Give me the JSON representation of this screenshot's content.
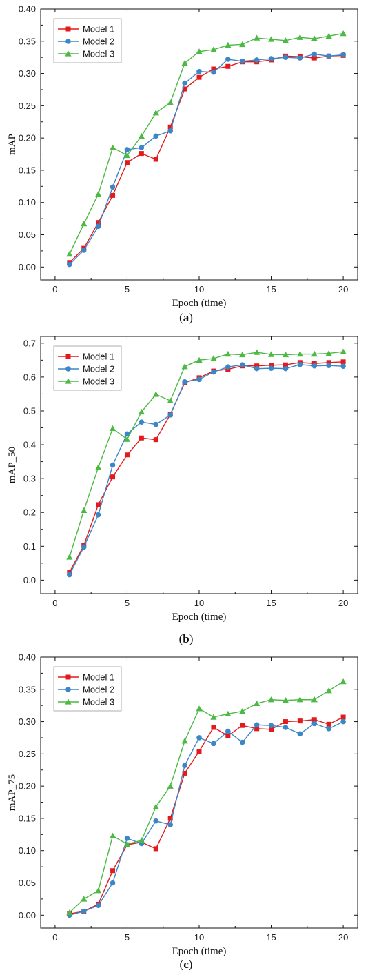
{
  "figure": {
    "series_colors": {
      "Model 1": "#e31a1c",
      "Model 2": "#3b86c6",
      "Model 3": "#4cb944"
    },
    "marker_shapes": {
      "Model 1": "square",
      "Model 2": "circle",
      "Model 3": "triangle"
    }
  },
  "chart_data": [
    {
      "type": "line",
      "caption": "(a)",
      "caption_letter": "a",
      "xlabel": "Epoch (time)",
      "ylabel": "mAP",
      "xlim": [
        -1,
        21
      ],
      "ylim": [
        -0.02,
        0.4
      ],
      "xticks": [
        0,
        5,
        10,
        15,
        20
      ],
      "xtick_labels": [
        "0",
        "5",
        "10",
        "15",
        "20"
      ],
      "yticks": [
        0.0,
        0.05,
        0.1,
        0.15,
        0.2,
        0.25,
        0.3,
        0.35,
        0.4
      ],
      "ytick_labels": [
        "0.00",
        "0.05",
        "0.10",
        "0.15",
        "0.20",
        "0.25",
        "0.30",
        "0.35",
        "0.40"
      ],
      "legend_position": "top-left",
      "grid": false,
      "x": [
        1,
        2,
        3,
        4,
        5,
        6,
        7,
        8,
        9,
        10,
        11,
        12,
        13,
        14,
        15,
        16,
        17,
        18,
        19,
        20
      ],
      "series": [
        {
          "name": "Model 1",
          "values": [
            0.007,
            0.029,
            0.069,
            0.111,
            0.162,
            0.176,
            0.167,
            0.217,
            0.276,
            0.294,
            0.307,
            0.311,
            0.318,
            0.318,
            0.321,
            0.327,
            0.326,
            0.324,
            0.327,
            0.328
          ]
        },
        {
          "name": "Model 2",
          "values": [
            0.004,
            0.026,
            0.063,
            0.124,
            0.182,
            0.185,
            0.203,
            0.211,
            0.285,
            0.303,
            0.302,
            0.322,
            0.319,
            0.321,
            0.323,
            0.325,
            0.324,
            0.33,
            0.327,
            0.329
          ]
        },
        {
          "name": "Model 3",
          "values": [
            0.02,
            0.067,
            0.113,
            0.185,
            0.173,
            0.203,
            0.239,
            0.255,
            0.316,
            0.334,
            0.337,
            0.344,
            0.345,
            0.355,
            0.353,
            0.351,
            0.356,
            0.354,
            0.358,
            0.362
          ]
        }
      ]
    },
    {
      "type": "line",
      "caption": "(b)",
      "caption_letter": "b",
      "xlabel": "Epoch (time)",
      "ylabel": "mAP_50",
      "xlim": [
        -1,
        21
      ],
      "ylim": [
        -0.04,
        0.72
      ],
      "xticks": [
        0,
        5,
        10,
        15,
        20
      ],
      "xtick_labels": [
        "0",
        "5",
        "10",
        "15",
        "20"
      ],
      "yticks": [
        0.0,
        0.1,
        0.2,
        0.3,
        0.4,
        0.5,
        0.6,
        0.7
      ],
      "ytick_labels": [
        "0.0",
        "0.1",
        "0.2",
        "0.3",
        "0.4",
        "0.5",
        "0.6",
        "0.7"
      ],
      "legend_position": "top-left",
      "grid": false,
      "x": [
        1,
        2,
        3,
        4,
        5,
        6,
        7,
        8,
        9,
        10,
        11,
        12,
        13,
        14,
        15,
        16,
        17,
        18,
        19,
        20
      ],
      "series": [
        {
          "name": "Model 1",
          "values": [
            0.023,
            0.103,
            0.223,
            0.305,
            0.37,
            0.42,
            0.415,
            0.49,
            0.583,
            0.598,
            0.618,
            0.623,
            0.633,
            0.633,
            0.635,
            0.636,
            0.643,
            0.64,
            0.643,
            0.645
          ]
        },
        {
          "name": "Model 2",
          "values": [
            0.016,
            0.098,
            0.193,
            0.34,
            0.432,
            0.467,
            0.46,
            0.488,
            0.586,
            0.593,
            0.615,
            0.63,
            0.636,
            0.625,
            0.626,
            0.625,
            0.637,
            0.633,
            0.634,
            0.632
          ]
        },
        {
          "name": "Model 3",
          "values": [
            0.068,
            0.206,
            0.333,
            0.448,
            0.416,
            0.497,
            0.549,
            0.53,
            0.631,
            0.65,
            0.655,
            0.668,
            0.666,
            0.673,
            0.667,
            0.666,
            0.668,
            0.668,
            0.67,
            0.675
          ]
        }
      ]
    },
    {
      "type": "line",
      "caption": "(c)",
      "caption_letter": "c",
      "xlabel": "Epoch (time)",
      "ylabel": "mAP_75",
      "xlim": [
        -1,
        21
      ],
      "ylim": [
        -0.02,
        0.4
      ],
      "xticks": [
        0,
        5,
        10,
        15,
        20
      ],
      "xtick_labels": [
        "0",
        "5",
        "10",
        "15",
        "20"
      ],
      "yticks": [
        0.0,
        0.05,
        0.1,
        0.15,
        0.2,
        0.25,
        0.3,
        0.35,
        0.4
      ],
      "ytick_labels": [
        "0.00",
        "0.05",
        "0.10",
        "0.15",
        "0.20",
        "0.25",
        "0.30",
        "0.35",
        "0.40"
      ],
      "legend_position": "top-left",
      "grid": false,
      "x": [
        1,
        2,
        3,
        4,
        5,
        6,
        7,
        8,
        9,
        10,
        11,
        12,
        13,
        14,
        15,
        16,
        17,
        18,
        19,
        20
      ],
      "series": [
        {
          "name": "Model 1",
          "values": [
            0.002,
            0.006,
            0.017,
            0.069,
            0.109,
            0.113,
            0.103,
            0.15,
            0.22,
            0.254,
            0.291,
            0.278,
            0.294,
            0.289,
            0.288,
            0.3,
            0.301,
            0.303,
            0.296,
            0.307
          ]
        },
        {
          "name": "Model 2",
          "values": [
            0.0,
            0.006,
            0.015,
            0.05,
            0.119,
            0.111,
            0.146,
            0.14,
            0.232,
            0.275,
            0.266,
            0.285,
            0.268,
            0.295,
            0.294,
            0.291,
            0.281,
            0.297,
            0.289,
            0.3
          ]
        },
        {
          "name": "Model 3",
          "values": [
            0.004,
            0.025,
            0.038,
            0.123,
            0.11,
            0.116,
            0.168,
            0.2,
            0.27,
            0.32,
            0.307,
            0.312,
            0.316,
            0.328,
            0.334,
            0.333,
            0.334,
            0.334,
            0.348,
            0.362
          ]
        }
      ]
    }
  ]
}
